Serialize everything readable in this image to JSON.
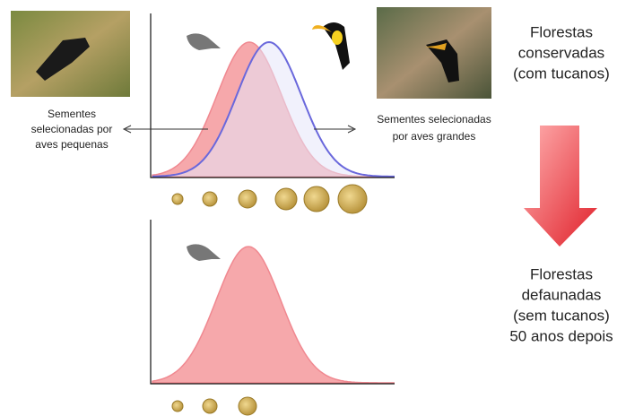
{
  "left_label": {
    "lines": [
      "Sementes",
      "selecionadas por",
      "aves pequenas"
    ]
  },
  "right_label": {
    "lines": [
      "Sementes selecionadas",
      "por aves grandes"
    ]
  },
  "top_state": {
    "lines": [
      "Florestas",
      "conservadas",
      "(com tucanos)"
    ]
  },
  "bottom_state": {
    "lines": [
      "Florestas",
      "defaunadas",
      "(sem tucanos)",
      "50 anos depois"
    ]
  }
}
